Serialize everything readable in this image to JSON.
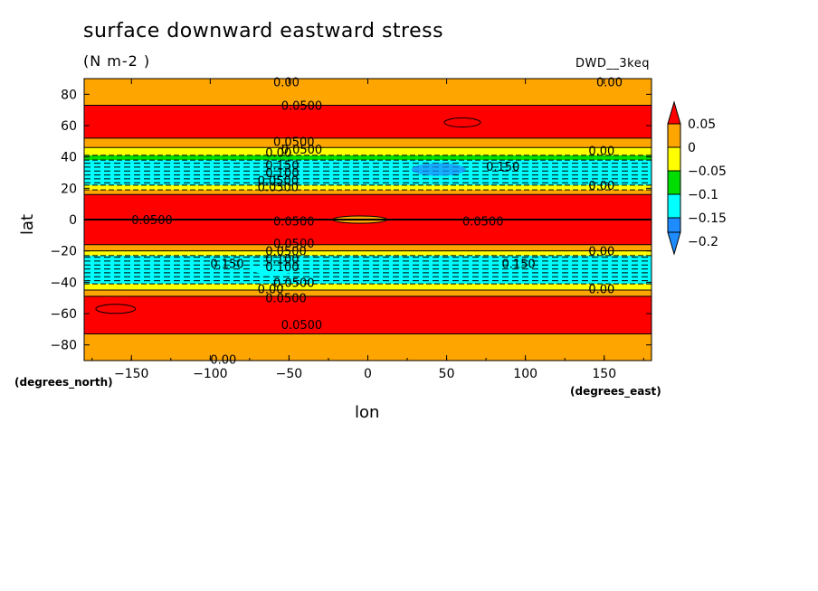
{
  "chart_data": {
    "type": "contour",
    "title": "surface downward eastward stress",
    "units": "(N m-2  )",
    "model_label": "DWD__3keq",
    "xlabel": "lon",
    "ylabel": "lat",
    "x_units": "(degrees_east)",
    "y_units": "(degrees_north)",
    "xlim": [
      -180,
      180
    ],
    "ylim": [
      -90,
      90
    ],
    "x_ticks": [
      -150,
      -100,
      -50,
      0,
      50,
      100,
      150
    ],
    "y_ticks": [
      -80,
      -60,
      -40,
      -20,
      0,
      20,
      40,
      60,
      80
    ],
    "colorbar": {
      "levels": [
        -0.2,
        -0.15,
        -0.1,
        -0.05,
        0,
        0.05
      ],
      "labels": [
        "0.05",
        "0",
        "−0.05",
        "−0.1",
        "−0.15",
        "−0.2"
      ],
      "colors": [
        "#1e8cff",
        "#00ffff",
        "#00dd00",
        "#ffff00",
        "#ffa500",
        "#ff0000"
      ]
    },
    "zonal_bands": [
      {
        "lat_from": 90,
        "lat_to": 73,
        "class": "0 to 0.05"
      },
      {
        "lat_from": 73,
        "lat_to": 52,
        "class": "> 0.05"
      },
      {
        "lat_from": 52,
        "lat_to": 46,
        "class": "0 to 0.05"
      },
      {
        "lat_from": 46,
        "lat_to": 41,
        "class": "-0.05 to 0"
      },
      {
        "lat_from": 41,
        "lat_to": 38,
        "class": "-0.1 to -0.05"
      },
      {
        "lat_from": 38,
        "lat_to": 22,
        "class": "-0.15 to -0.1"
      },
      {
        "lat_from": 22,
        "lat_to": 19,
        "class": "-0.05 to 0"
      },
      {
        "lat_from": 19,
        "lat_to": 16,
        "class": "0 to 0.05"
      },
      {
        "lat_from": 16,
        "lat_to": -16,
        "class": "> 0.05"
      },
      {
        "lat_from": -16,
        "lat_to": -20,
        "class": "0 to 0.05"
      },
      {
        "lat_from": -20,
        "lat_to": -23,
        "class": "-0.05 to 0"
      },
      {
        "lat_from": -23,
        "lat_to": -41,
        "class": "-0.15 to -0.1"
      },
      {
        "lat_from": -41,
        "lat_to": -45,
        "class": "-0.05 to 0"
      },
      {
        "lat_from": -45,
        "lat_to": -49,
        "class": "0 to 0.05"
      },
      {
        "lat_from": -49,
        "lat_to": -73,
        "class": "> 0.05"
      },
      {
        "lat_from": -73,
        "lat_to": -90,
        "class": "0 to 0.05"
      }
    ],
    "contour_labels": [
      {
        "lon": -60,
        "lat": 88,
        "text": "0.00"
      },
      {
        "lon": 145,
        "lat": 88,
        "text": "0.00"
      },
      {
        "lon": -55,
        "lat": 73,
        "text": "0.0500"
      },
      {
        "lon": -60,
        "lat": 50,
        "text": "0.0500"
      },
      {
        "lon": -55,
        "lat": 45,
        "text": "0.0500"
      },
      {
        "lon": -65,
        "lat": 43,
        "text": "0.00"
      },
      {
        "lon": -65,
        "lat": 35,
        "text": "0.150"
      },
      {
        "lon": -65,
        "lat": 30,
        "text": "0.100"
      },
      {
        "lon": 75,
        "lat": 34,
        "text": "0.150"
      },
      {
        "lon": 140,
        "lat": 44,
        "text": "0.00"
      },
      {
        "lon": -70,
        "lat": 25,
        "text": "0.0500"
      },
      {
        "lon": -70,
        "lat": 21,
        "text": "0.0500"
      },
      {
        "lon": 140,
        "lat": 22,
        "text": "0.00"
      },
      {
        "lon": -150,
        "lat": 0,
        "text": "0.0500"
      },
      {
        "lon": -60,
        "lat": -1,
        "text": "0.0500"
      },
      {
        "lon": 60,
        "lat": -1,
        "text": "0.0500"
      },
      {
        "lon": -60,
        "lat": -15,
        "text": "0.0500"
      },
      {
        "lon": -65,
        "lat": -20,
        "text": "0.0500"
      },
      {
        "lon": 140,
        "lat": -20,
        "text": "0.00"
      },
      {
        "lon": -100,
        "lat": -28,
        "text": "0.150"
      },
      {
        "lon": 85,
        "lat": -28,
        "text": "0.150"
      },
      {
        "lon": -65,
        "lat": -25,
        "text": "0.100"
      },
      {
        "lon": -65,
        "lat": -30,
        "text": "0.100"
      },
      {
        "lon": -60,
        "lat": -40,
        "text": "0.0500"
      },
      {
        "lon": -70,
        "lat": -44,
        "text": "0.00"
      },
      {
        "lon": -65,
        "lat": -50,
        "text": "0.0500"
      },
      {
        "lon": 140,
        "lat": -44,
        "text": "0.00"
      },
      {
        "lon": -55,
        "lat": -67,
        "text": "0.0500"
      },
      {
        "lon": -100,
        "lat": -89,
        "text": "0.00"
      }
    ]
  }
}
